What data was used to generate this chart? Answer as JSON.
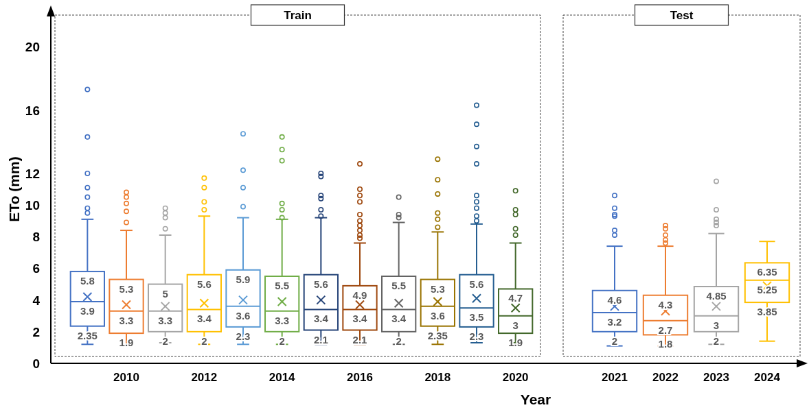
{
  "chart_data": [
    {
      "type": "box",
      "title": "Train",
      "xlabel": "Year",
      "ylabel": "ETo (mm)",
      "categories": [
        null,
        "2010",
        null,
        "2012",
        null,
        "2014",
        null,
        "2016",
        null,
        "2018",
        null,
        "2020"
      ],
      "colors": [
        "#4472c4",
        "#ed7d31",
        "#a5a5a5",
        "#ffc000",
        "#5b9bd5",
        "#70ad47",
        "#264478",
        "#9e480e",
        "#636363",
        "#997300",
        "#255e91",
        "#43682b"
      ],
      "boxes": [
        {
          "low": 1.2,
          "q1": 2.35,
          "median": 3.9,
          "q3": 5.8,
          "high": 9.1,
          "mean": 4.2,
          "outliers": [
            17.3,
            14.3,
            12,
            11.1,
            10.5,
            9.8,
            9.5
          ]
        },
        {
          "low": 1.2,
          "q1": 1.9,
          "median": 3.3,
          "q3": 5.3,
          "high": 8.4,
          "mean": 3.7,
          "outliers": [
            10.8,
            10.5,
            10.1,
            9.6,
            8.9
          ]
        },
        {
          "low": 1.3,
          "q1": 2,
          "median": 3.3,
          "q3": 5,
          "high": 8.1,
          "mean": 3.6,
          "outliers": [
            9.8,
            9.5,
            9.2,
            8.5
          ]
        },
        {
          "low": 1.2,
          "q1": 2,
          "median": 3.4,
          "q3": 5.6,
          "high": 9.3,
          "mean": 3.8,
          "outliers": [
            11.7,
            11.1,
            10.2,
            9.7
          ]
        },
        {
          "low": 1.2,
          "q1": 2.3,
          "median": 3.6,
          "q3": 5.9,
          "high": 9.2,
          "mean": 4,
          "outliers": [
            14.5,
            12.2,
            11.1,
            9.9
          ]
        },
        {
          "low": 1.2,
          "q1": 2,
          "median": 3.3,
          "q3": 5.5,
          "high": 9.1,
          "mean": 3.9,
          "outliers": [
            14.3,
            13.5,
            12.8,
            10.1,
            9.7,
            9.2
          ]
        },
        {
          "low": 1.2,
          "q1": 2.1,
          "median": 3.4,
          "q3": 5.6,
          "high": 9.2,
          "mean": 4,
          "outliers": [
            12,
            11.8,
            10.6,
            10.4,
            9.7,
            9.3
          ]
        },
        {
          "low": 1.2,
          "q1": 2.1,
          "median": 3.4,
          "q3": 4.9,
          "high": 7.6,
          "mean": 3.7,
          "outliers": [
            12.6,
            11,
            10.6,
            10.2,
            9.4,
            9,
            8.7,
            8.4,
            8.1,
            7.9
          ]
        },
        {
          "low": 1.2,
          "q1": 2,
          "median": 3.4,
          "q3": 5.5,
          "high": 8.9,
          "mean": 3.8,
          "outliers": [
            10.5,
            9.4,
            9.2
          ]
        },
        {
          "low": 1.2,
          "q1": 2.35,
          "median": 3.6,
          "q3": 5.3,
          "high": 8.3,
          "mean": 3.9,
          "outliers": [
            12.9,
            11.6,
            10.7,
            9.5,
            9.1,
            8.6
          ]
        },
        {
          "low": 1.3,
          "q1": 2.3,
          "median": 3.5,
          "q3": 5.6,
          "high": 8.8,
          "mean": 4.1,
          "outliers": [
            16.3,
            15.1,
            13.7,
            12.6,
            10.6,
            10.2,
            9.8,
            9.3,
            9
          ]
        },
        {
          "low": 1.3,
          "q1": 1.9,
          "median": 3,
          "q3": 4.7,
          "high": 7.6,
          "mean": 3.5,
          "outliers": [
            10.9,
            9.7,
            9.4,
            8.5,
            8.1
          ]
        }
      ],
      "annotations": [
        "5.8",
        "3.9",
        "2.35",
        "5.3",
        "3.3",
        "1.9",
        "5",
        "3.3",
        "2",
        "5.6",
        "3.4",
        "2",
        "5.9",
        "3.6",
        "2.3",
        "5.5",
        "3.3",
        "2",
        "5.6",
        "3.4",
        "2.1",
        "4.9",
        "3.4",
        "2.1",
        "5.5",
        "3.4",
        "2",
        "5.3",
        "3.6",
        "2.35",
        "5.6",
        "3.5",
        "2.3",
        "4.7",
        "3",
        "1.9"
      ],
      "ylim": [
        0,
        22
      ],
      "yticks": [
        0,
        2,
        4,
        6,
        8,
        10,
        12,
        16,
        20
      ]
    },
    {
      "type": "box",
      "title": "Test",
      "categories": [
        "2021",
        "2022",
        "2023",
        "2024"
      ],
      "colors": [
        "#4472c4",
        "#ed7d31",
        "#a5a5a5",
        "#ffc000"
      ],
      "boxes": [
        {
          "low": 1.1,
          "q1": 2,
          "median": 3.2,
          "q3": 4.6,
          "high": 7.4,
          "mean": 3.6,
          "outliers": [
            10.6,
            9.8,
            9.4,
            9.3,
            8.4,
            8.1
          ]
        },
        {
          "low": 1.1,
          "q1": 1.8,
          "median": 2.7,
          "q3": 4.3,
          "high": 7.4,
          "mean": 3.3,
          "outliers": [
            8.7,
            8.5,
            8.1,
            7.8,
            7.6
          ]
        },
        {
          "low": 1.2,
          "q1": 2,
          "median": 3,
          "q3": 4.85,
          "high": 8.2,
          "mean": 3.6,
          "outliers": [
            11.5,
            9.7,
            9.1,
            8.9,
            8.7
          ]
        },
        {
          "low": 1.4,
          "q1": 3.85,
          "median": 5.25,
          "q3": 6.35,
          "high": 7.7,
          "mean": 4.9
        }
      ],
      "annotations": [
        "4.6",
        "3.2",
        "2",
        "4.3",
        "2.7",
        "1.8",
        "4.85",
        "3",
        "2",
        "6.35",
        "5.25",
        "3.85"
      ],
      "ylim": [
        0,
        22
      ],
      "tick_labels": "x"
    }
  ]
}
